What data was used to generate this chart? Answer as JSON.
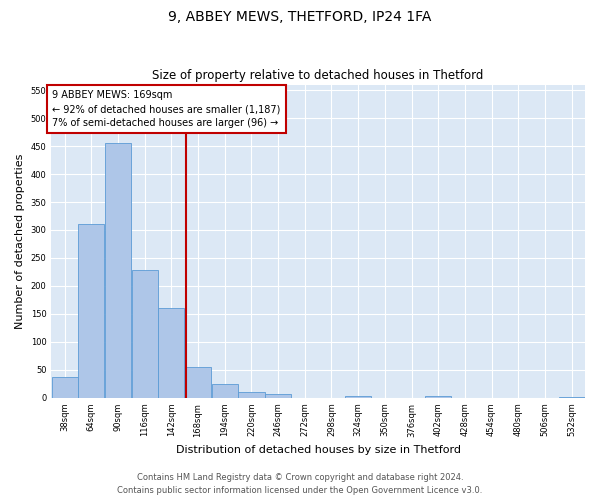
{
  "title1": "9, ABBEY MEWS, THETFORD, IP24 1FA",
  "title2": "Size of property relative to detached houses in Thetford",
  "xlabel": "Distribution of detached houses by size in Thetford",
  "ylabel": "Number of detached properties",
  "footer1": "Contains HM Land Registry data © Crown copyright and database right 2024.",
  "footer2": "Contains public sector information licensed under the Open Government Licence v3.0.",
  "annotation_line1": "9 ABBEY MEWS: 169sqm",
  "annotation_line2": "← 92% of detached houses are smaller (1,187)",
  "annotation_line3": "7% of semi-detached houses are larger (96) →",
  "property_size": 169,
  "bin_edges": [
    38,
    64,
    90,
    116,
    142,
    168,
    194,
    220,
    246,
    272,
    298,
    324,
    350,
    376,
    402,
    428,
    454,
    480,
    506,
    532,
    558
  ],
  "bar_heights": [
    38,
    310,
    456,
    228,
    160,
    55,
    24,
    11,
    7,
    0,
    0,
    4,
    0,
    0,
    3,
    0,
    0,
    0,
    0,
    2
  ],
  "bar_color": "#aec6e8",
  "bar_edge_color": "#5b9bd5",
  "vline_color": "#c00000",
  "annotation_box_color": "#c00000",
  "background_color": "#dce8f5",
  "ylim": [
    0,
    560
  ],
  "fig_width": 6.0,
  "fig_height": 5.0,
  "dpi": 100
}
